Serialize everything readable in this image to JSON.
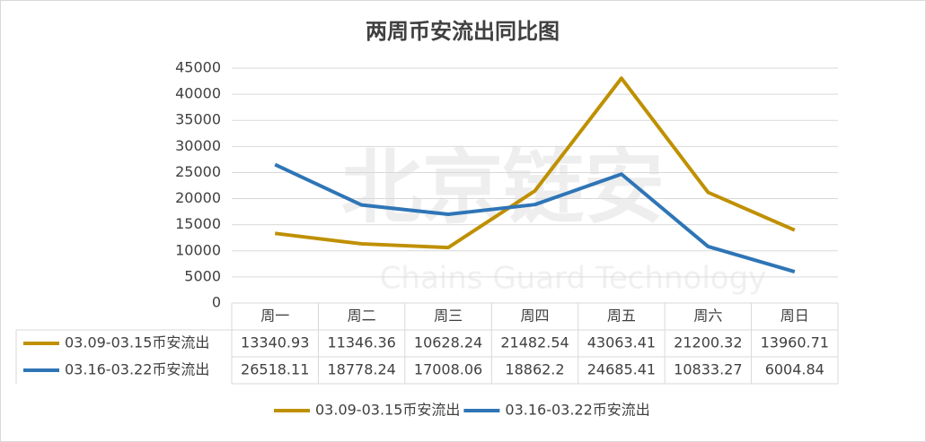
{
  "chart_data": {
    "type": "line",
    "title": "两周币安流出同比图",
    "watermark": {
      "title": "北京链安",
      "subtitle": "Chains Guard Technology"
    },
    "categories": [
      "周一",
      "周二",
      "周三",
      "周四",
      "周五",
      "周六",
      "周日"
    ],
    "series": [
      {
        "name": "03.09-03.15币安流出",
        "color": "#bf9000",
        "values": [
          13340.93,
          11346.36,
          10628.24,
          21482.54,
          43063.41,
          21200.32,
          13960.71
        ]
      },
      {
        "name": "03.16-03.22币安流出",
        "color": "#2e75b6",
        "values": [
          26518.11,
          18778.24,
          17008.06,
          18862.2,
          24685.41,
          10833.27,
          6004.84
        ]
      }
    ],
    "ylim": [
      0,
      45000
    ],
    "yticks": [
      0,
      5000,
      10000,
      15000,
      20000,
      25000,
      30000,
      35000,
      40000,
      45000
    ],
    "grid": true
  }
}
